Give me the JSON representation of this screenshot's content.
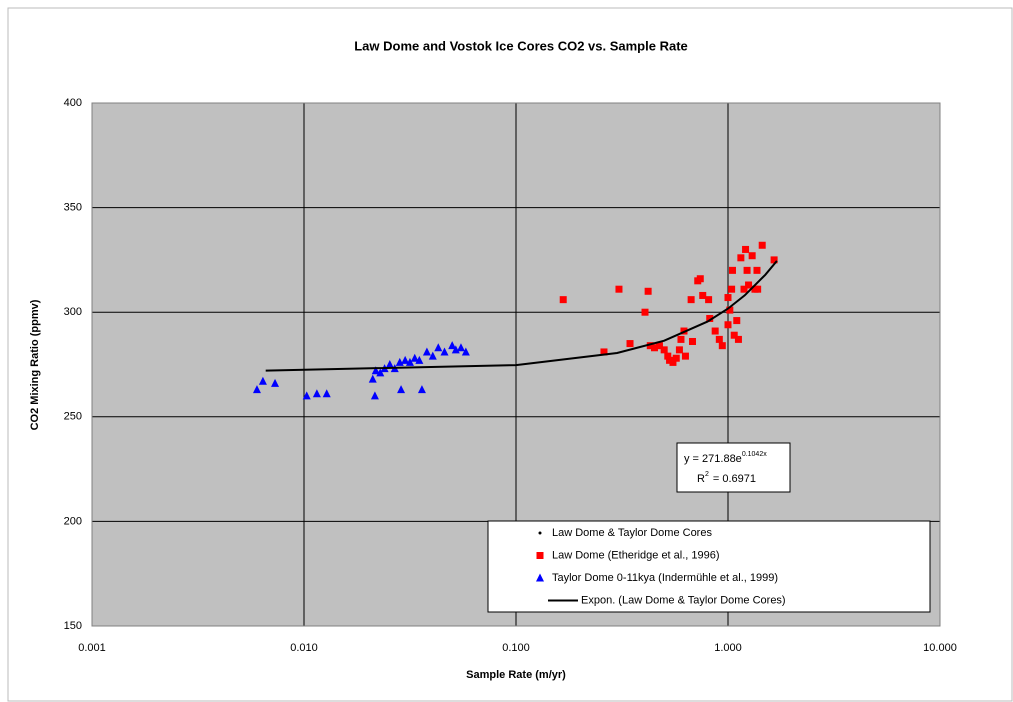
{
  "chart_data": {
    "type": "scatter",
    "title": "Law Dome and Vostok Ice Cores CO2 vs. Sample Rate",
    "x_label": "Sample Rate (m/yr)",
    "y_label": "CO2 Mixing Ratio (ppmv)",
    "xscale": "log",
    "xlim": [
      0.001,
      10
    ],
    "xticks": [
      0.001,
      {
        "value": 0.01,
        "label": "0.010"
      },
      {
        "value": 0.1,
        "label": "0.100"
      },
      {
        "value": 1,
        "label": "1.000"
      },
      {
        "value": 10,
        "label": "10.000"
      }
    ],
    "ylim": [
      150,
      400
    ],
    "yticks": [
      150,
      200,
      250,
      300,
      350,
      400
    ],
    "grid": true,
    "legend": "bottom-right",
    "series": [
      {
        "name": "Law Dome & Taylor Dome Cores",
        "color": "#000000",
        "marker": "dot",
        "x": [],
        "values": []
      },
      {
        "name": "Law Dome (Etheridge et al., 1996)",
        "color": "#ff0000",
        "marker": "square",
        "x": [
          0.167,
          0.26,
          0.306,
          0.345,
          0.406,
          0.42,
          0.43,
          0.45,
          0.475,
          0.5,
          0.52,
          0.53,
          0.55,
          0.57,
          0.59,
          0.6,
          0.62,
          0.63,
          0.67,
          0.68,
          0.72,
          0.74,
          0.76,
          0.81,
          0.82,
          0.87,
          0.91,
          0.94,
          1.0,
          1.02,
          1.04,
          1.05,
          1.07,
          1.1,
          1.12,
          1.15,
          1.19,
          1.21,
          1.23,
          1.25,
          1.3,
          1.34,
          1.38,
          1.45,
          1.37,
          1.0,
          1.65
        ],
        "values": [
          306,
          281,
          311,
          285,
          300,
          310,
          284,
          283,
          284,
          282,
          279,
          277,
          276,
          278,
          282,
          287,
          291,
          279,
          306,
          286,
          315,
          316,
          308,
          306,
          297,
          291,
          287,
          284,
          307,
          301,
          311,
          320,
          289,
          296,
          287,
          326,
          311,
          330,
          320,
          313,
          327,
          311,
          311,
          332,
          320,
          294,
          325
        ]
      },
      {
        "name": "Taylor Dome 0-11kya (Indermühle et al., 1999)",
        "color": "#0000ff",
        "marker": "triangle",
        "x": [
          0.006,
          0.0064,
          0.0073,
          0.0103,
          0.0115,
          0.0128,
          0.0216,
          0.0211,
          0.0218,
          0.0229,
          0.024,
          0.0254,
          0.0268,
          0.0283,
          0.0287,
          0.03,
          0.0316,
          0.0333,
          0.035,
          0.036,
          0.038,
          0.0405,
          0.043,
          0.046,
          0.05,
          0.052,
          0.055,
          0.058
        ],
        "values": [
          263,
          267,
          266,
          260,
          261,
          261,
          260,
          268,
          272,
          271,
          273,
          275,
          273,
          276,
          263,
          277,
          276,
          278,
          277,
          263,
          281,
          279,
          283,
          281,
          284,
          282,
          283,
          281
        ]
      }
    ],
    "trendline": {
      "name": "Expon. (Law Dome & Taylor Dome Cores)",
      "color": "#000000",
      "x": [
        0.0066,
        0.1,
        0.3,
        0.5,
        0.8,
        1.0,
        1.2,
        1.5,
        1.7
      ],
      "values": [
        272.1,
        274.7,
        280.5,
        286.4,
        295.5,
        301.7,
        308.1,
        317.9,
        324.5
      ],
      "equation": {
        "text": "y = 271.88e",
        "sup": "0.1042x"
      },
      "r_squared": {
        "text": "R",
        "sup": "2",
        "rest": "= 0.6971"
      }
    }
  }
}
